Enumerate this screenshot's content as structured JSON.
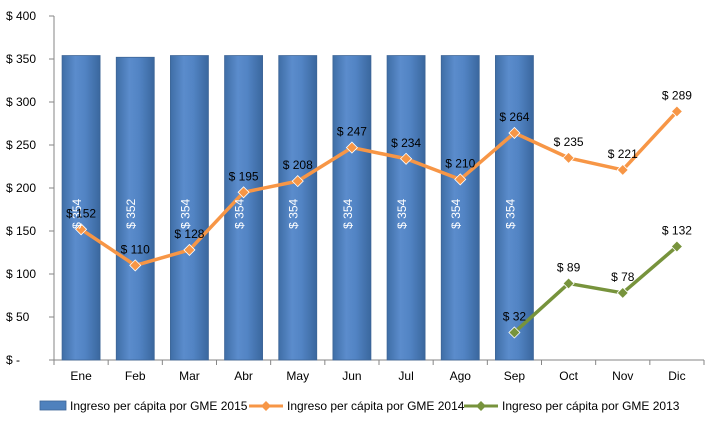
{
  "chart_data": {
    "type": "bar",
    "categories": [
      "Ene",
      "Feb",
      "Mar",
      "Abr",
      "May",
      "Jun",
      "Jul",
      "Ago",
      "Sep",
      "Oct",
      "Nov",
      "Dic"
    ],
    "y_ticks": [
      0,
      50,
      100,
      150,
      200,
      250,
      300,
      350,
      400
    ],
    "y_tick_labels": [
      "$ -",
      "$ 50",
      "$ 100",
      "$ 150",
      "$ 200",
      "$ 250",
      "$ 300",
      "$ 350",
      "$ 400"
    ],
    "ylim": [
      0,
      400
    ],
    "grid": false,
    "legend_position": "bottom",
    "series": [
      {
        "name": "Ingreso per cápita por GME 2015",
        "type": "bar",
        "color": "#4F81BD",
        "values": [
          354,
          352,
          354,
          354,
          354,
          354,
          354,
          354,
          354,
          null,
          null,
          null
        ],
        "labels": [
          "$ 354",
          "$ 352",
          "$ 354",
          "$ 354",
          "$ 354",
          "$ 354",
          "$ 354",
          "$ 354",
          "$ 354",
          null,
          null,
          null
        ]
      },
      {
        "name": "Ingreso per cápita por GME 2014",
        "type": "line",
        "marker": "diamond",
        "color": "#F79646",
        "values": [
          152,
          110,
          128,
          195,
          208,
          247,
          234,
          210,
          264,
          235,
          221,
          289
        ],
        "labels": [
          "$ 152",
          "$ 110",
          "$ 128",
          "$ 195",
          "$ 208",
          "$ 247",
          "$ 234",
          "$ 210",
          "$ 264",
          "$ 235",
          "$ 221",
          "$ 289"
        ]
      },
      {
        "name": "Ingreso per cápita por GME 2013",
        "type": "line",
        "marker": "diamond",
        "color": "#77933C",
        "values": [
          null,
          null,
          null,
          null,
          null,
          null,
          null,
          null,
          32,
          89,
          78,
          132
        ],
        "labels": [
          null,
          null,
          null,
          null,
          null,
          null,
          null,
          null,
          "$ 32",
          "$ 89",
          "$ 78",
          "$ 132"
        ]
      }
    ]
  }
}
